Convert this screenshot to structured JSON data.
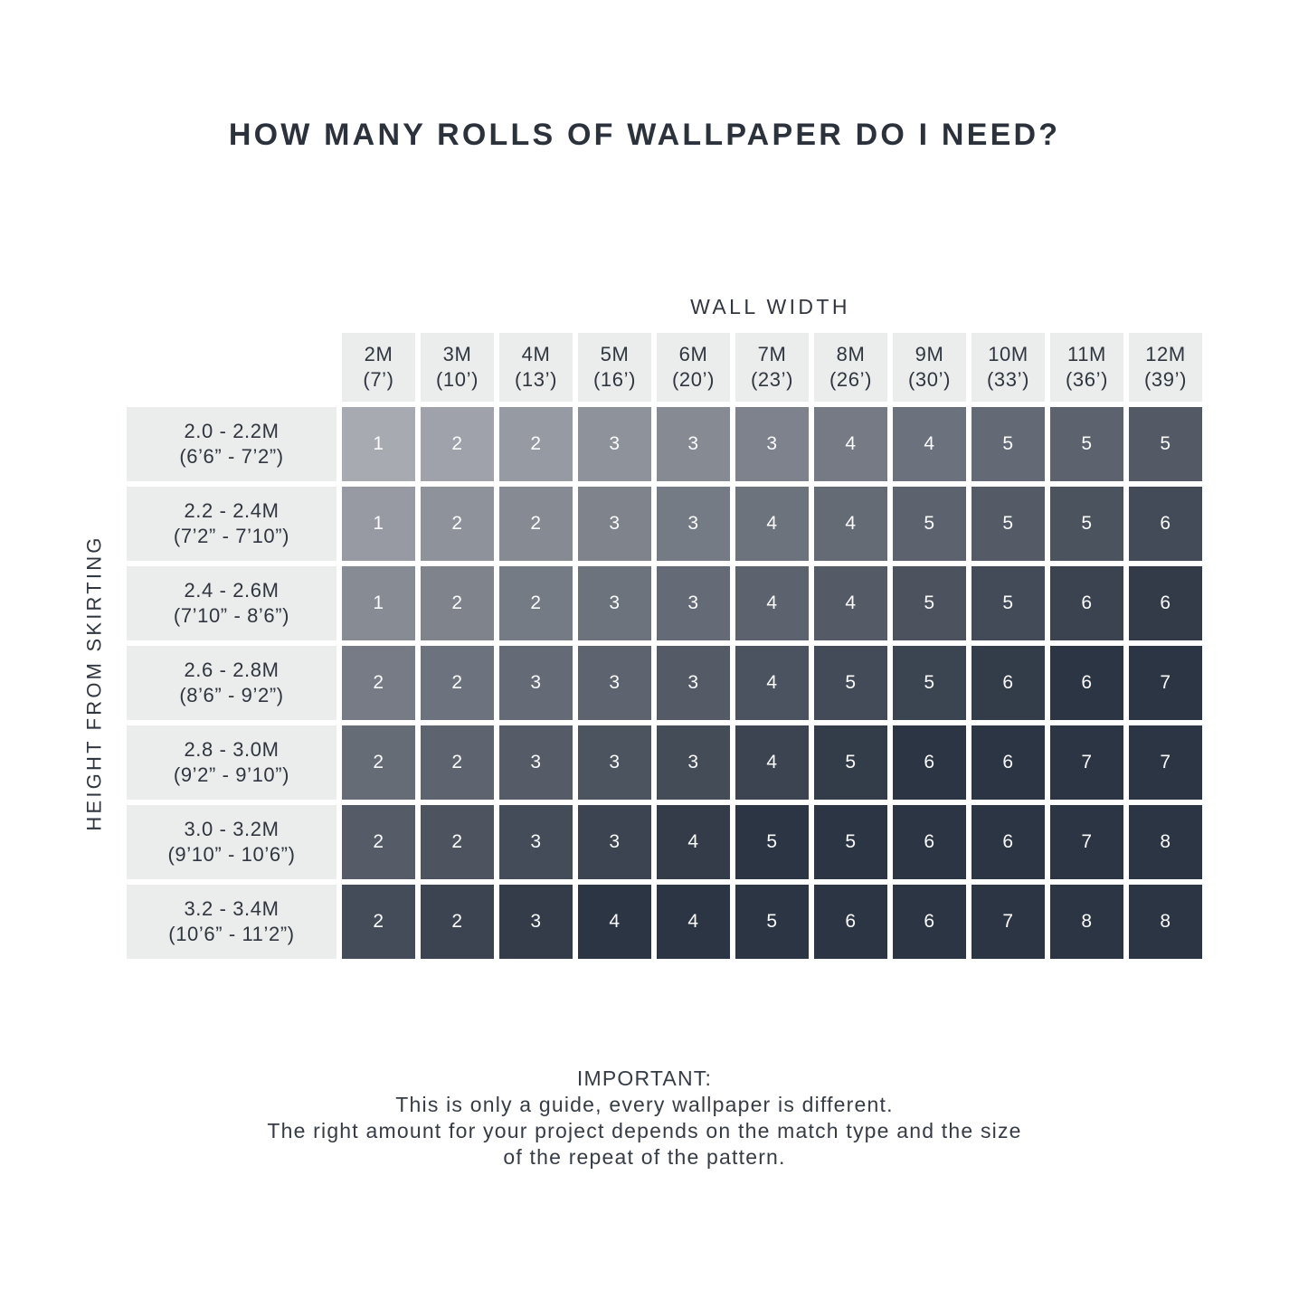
{
  "chart_data": {
    "type": "heatmap",
    "title": "HOW MANY ROLLS OF WALLPAPER DO I NEED?",
    "xlabel": "WALL WIDTH",
    "ylabel": "HEIGHT FROM SKIRTING",
    "columns": [
      {
        "metric": "2M",
        "imperial": "(7’)"
      },
      {
        "metric": "3M",
        "imperial": "(10’)"
      },
      {
        "metric": "4M",
        "imperial": "(13’)"
      },
      {
        "metric": "5M",
        "imperial": "(16’)"
      },
      {
        "metric": "6M",
        "imperial": "(20’)"
      },
      {
        "metric": "7M",
        "imperial": "(23’)"
      },
      {
        "metric": "8M",
        "imperial": "(26’)"
      },
      {
        "metric": "9M",
        "imperial": "(30’)"
      },
      {
        "metric": "10M",
        "imperial": "(33’)"
      },
      {
        "metric": "11M",
        "imperial": "(36’)"
      },
      {
        "metric": "12M",
        "imperial": "(39’)"
      }
    ],
    "rows": [
      {
        "metric": "2.0 - 2.2M",
        "imperial": "(6’6” - 7’2”)",
        "values": [
          1,
          2,
          2,
          3,
          3,
          3,
          4,
          4,
          5,
          5,
          5
        ]
      },
      {
        "metric": "2.2 - 2.4M",
        "imperial": "(7’2” - 7’10”)",
        "values": [
          1,
          2,
          2,
          3,
          3,
          4,
          4,
          5,
          5,
          5,
          6
        ]
      },
      {
        "metric": "2.4 - 2.6M",
        "imperial": "(7’10” - 8’6”)",
        "values": [
          1,
          2,
          2,
          3,
          3,
          4,
          4,
          5,
          5,
          6,
          6
        ]
      },
      {
        "metric": "2.6 - 2.8M",
        "imperial": "(8’6” - 9’2”)",
        "values": [
          2,
          2,
          3,
          3,
          3,
          4,
          5,
          5,
          6,
          6,
          7
        ]
      },
      {
        "metric": "2.8 - 3.0M",
        "imperial": "(9’2” - 9’10”)",
        "values": [
          2,
          2,
          3,
          3,
          3,
          4,
          5,
          6,
          6,
          7,
          7
        ]
      },
      {
        "metric": "3.0 - 3.2M",
        "imperial": "(9’10” - 10’6”)",
        "values": [
          2,
          2,
          3,
          3,
          4,
          5,
          5,
          6,
          6,
          7,
          8
        ]
      },
      {
        "metric": "3.2 - 3.4M",
        "imperial": "(10’6” - 11’2”)",
        "values": [
          2,
          2,
          3,
          4,
          4,
          5,
          6,
          6,
          7,
          8,
          8
        ]
      }
    ]
  },
  "footer": {
    "heading": "IMPORTANT:",
    "lines": [
      "This is only a guide, every wallpaper is different.",
      "The right amount for your project depends on the match type and the size",
      "of the repeat of the pattern."
    ]
  },
  "colors": {
    "cell_light": "#a7aab1",
    "cell_dark": "#2c3543",
    "header_bg": "#ebecec",
    "text": "#30363f",
    "cell_text": "#fbfbfc"
  }
}
